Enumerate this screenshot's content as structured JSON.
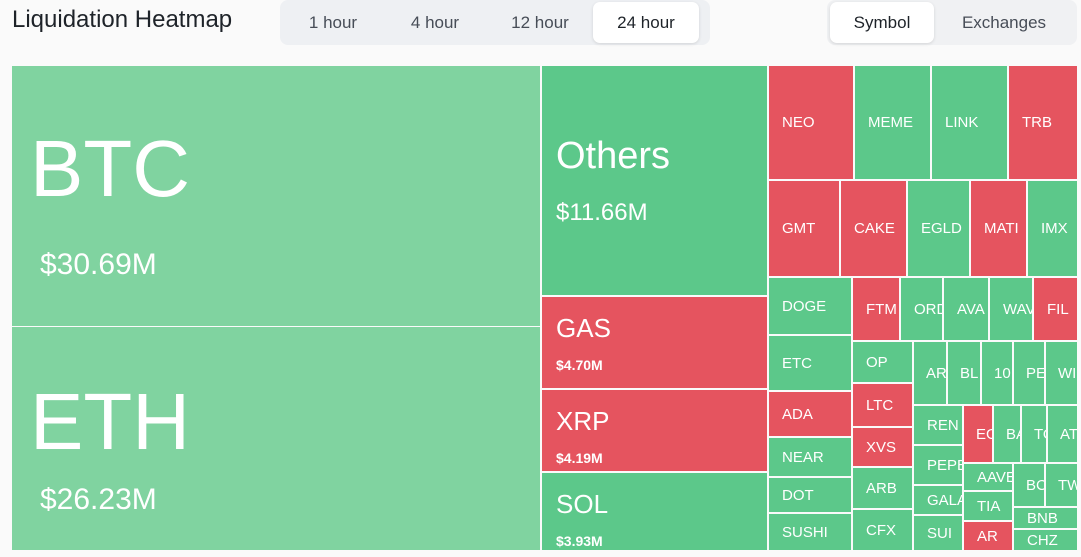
{
  "header": {
    "title": "Liquidation Heatmap",
    "time_tabs": [
      "1 hour",
      "4 hour",
      "12 hour",
      "24 hour"
    ],
    "view_tabs": [
      "Symbol",
      "Exchanges"
    ]
  },
  "cells": [
    {
      "label": "BTC",
      "value": "$30.69M",
      "color": "#80d3a0"
    },
    {
      "label": "ETH",
      "value": "$26.23M",
      "color": "#80d3a0"
    },
    {
      "label": "Others",
      "value": "$11.66M",
      "color": "#5cc88a"
    },
    {
      "label": "GAS",
      "value": "$4.70M",
      "color": "#e5545f"
    },
    {
      "label": "XRP",
      "value": "$4.19M",
      "color": "#e5545f"
    },
    {
      "label": "SOL",
      "value": "$3.93M",
      "color": "#5cc88a"
    },
    {
      "label": "NEO",
      "color": "#e5545f"
    },
    {
      "label": "MEME",
      "color": "#5cc88a"
    },
    {
      "label": "LINK",
      "color": "#5cc88a"
    },
    {
      "label": "TRB",
      "color": "#e5545f"
    },
    {
      "label": "GMT",
      "color": "#e5545f"
    },
    {
      "label": "CAKE",
      "color": "#e5545f"
    },
    {
      "label": "EGLD",
      "color": "#5cc88a"
    },
    {
      "label": "MATI",
      "color": "#e5545f"
    },
    {
      "label": "IMX",
      "color": "#5cc88a"
    },
    {
      "label": "DOGE",
      "color": "#5cc88a"
    },
    {
      "label": "ETC",
      "color": "#5cc88a"
    },
    {
      "label": "ADA",
      "color": "#e5545f"
    },
    {
      "label": "NEAR",
      "color": "#5cc88a"
    },
    {
      "label": "DOT",
      "color": "#5cc88a"
    },
    {
      "label": "SUSHI",
      "color": "#5cc88a"
    },
    {
      "label": "FTM",
      "color": "#e5545f"
    },
    {
      "label": "OP",
      "color": "#5cc88a"
    },
    {
      "label": "LTC",
      "color": "#e5545f"
    },
    {
      "label": "XVS",
      "color": "#e5545f"
    },
    {
      "label": "ARB",
      "color": "#5cc88a"
    },
    {
      "label": "CFX",
      "color": "#5cc88a"
    },
    {
      "label": "ORD",
      "color": "#5cc88a"
    },
    {
      "label": "AVA",
      "color": "#5cc88a"
    },
    {
      "label": "WAV",
      "color": "#5cc88a"
    },
    {
      "label": "FIL",
      "color": "#e5545f"
    },
    {
      "label": "AR",
      "color": "#5cc88a"
    },
    {
      "label": "BL",
      "color": "#5cc88a"
    },
    {
      "label": "10",
      "color": "#5cc88a"
    },
    {
      "label": "PE",
      "color": "#5cc88a"
    },
    {
      "label": "WI",
      "color": "#5cc88a"
    },
    {
      "label": "REN",
      "color": "#5cc88a"
    },
    {
      "label": "PEPE",
      "color": "#5cc88a"
    },
    {
      "label": "GALA",
      "color": "#5cc88a"
    },
    {
      "label": "SUI",
      "color": "#5cc88a"
    },
    {
      "label": "EG",
      "color": "#e5545f"
    },
    {
      "label": "BA",
      "color": "#5cc88a"
    },
    {
      "label": "TO",
      "color": "#5cc88a"
    },
    {
      "label": "AT",
      "color": "#5cc88a"
    },
    {
      "label": "AAVE",
      "color": "#5cc88a"
    },
    {
      "label": "TIA",
      "color": "#5cc88a"
    },
    {
      "label": "AR",
      "color": "#e5545f"
    },
    {
      "label": "BC",
      "color": "#5cc88a"
    },
    {
      "label": "TW",
      "color": "#5cc88a"
    },
    {
      "label": "BNB",
      "color": "#5cc88a"
    },
    {
      "label": "CHZ",
      "color": "#5cc88a"
    }
  ]
}
